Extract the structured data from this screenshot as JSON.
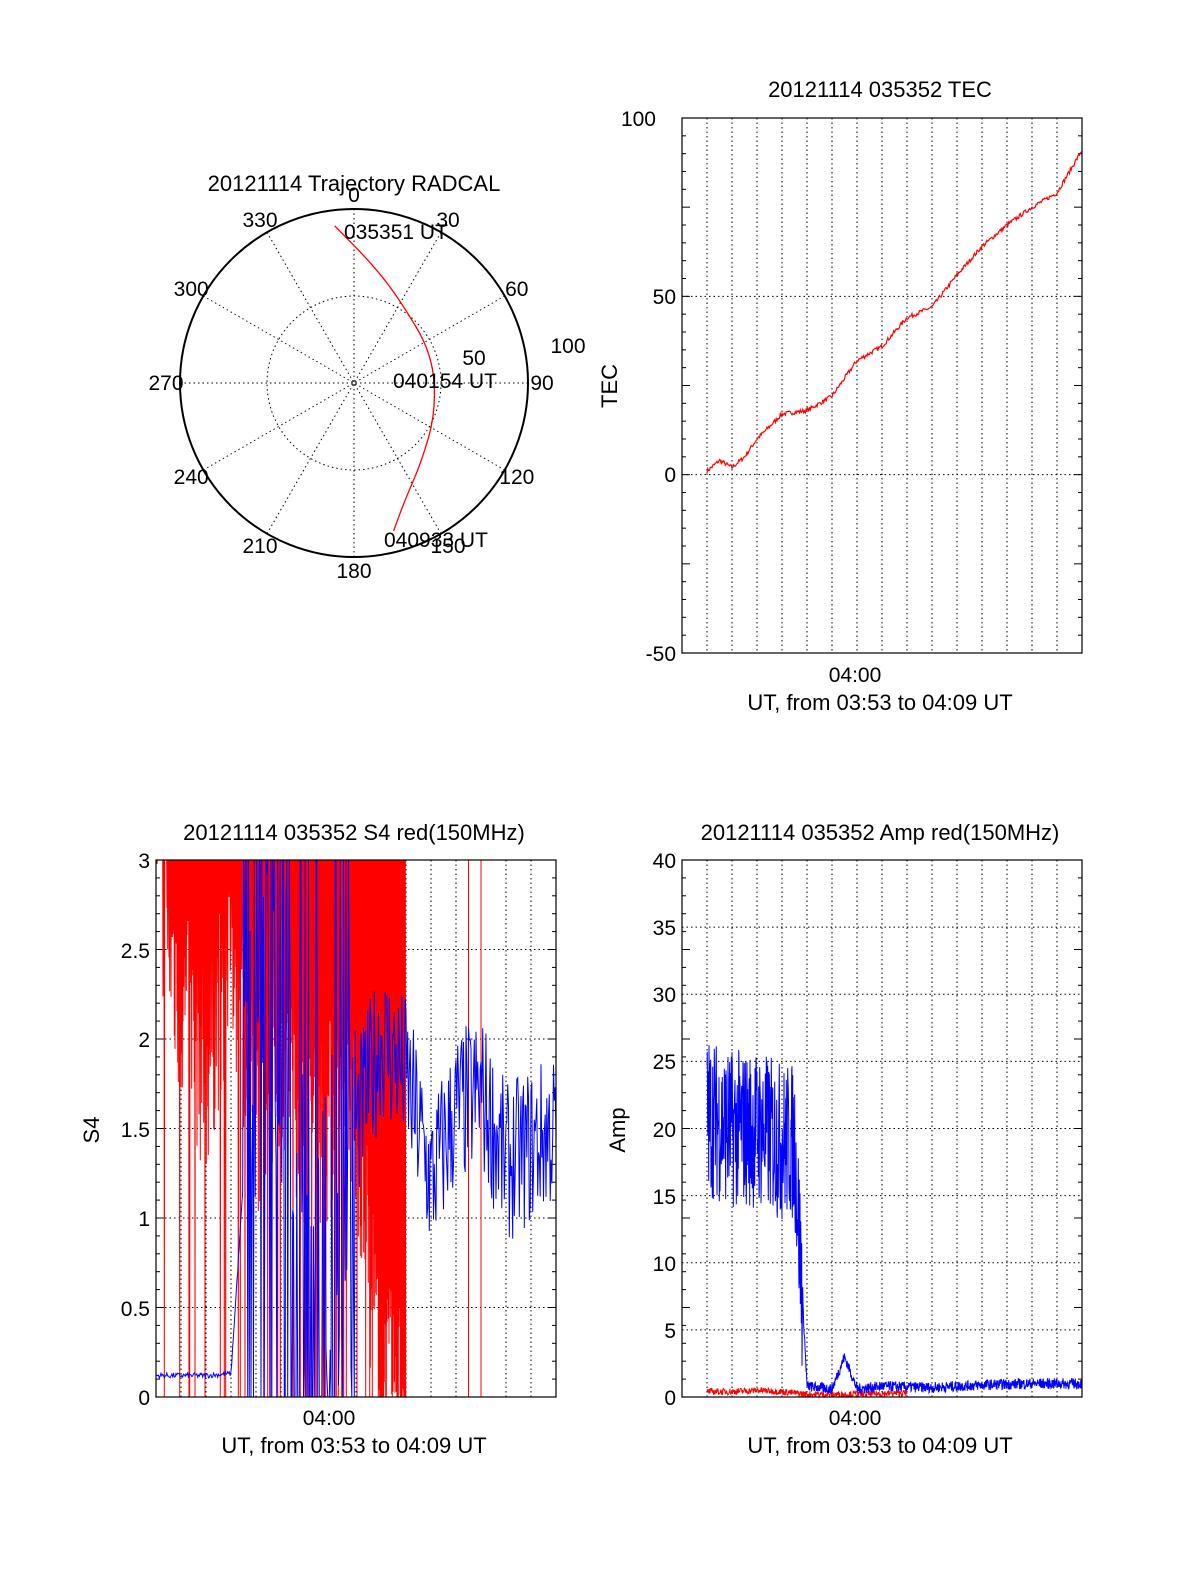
{
  "chart_data": [
    {
      "type": "polar",
      "title": "20121114 Trajectory RADCAL",
      "azimuth_labels": [
        "0",
        "30",
        "60",
        "90",
        "120",
        "150",
        "180",
        "210",
        "240",
        "270",
        "300",
        "330"
      ],
      "radial_labels": [
        "50",
        "100"
      ],
      "radial_range": [
        0,
        100
      ],
      "grid": true,
      "trajectory": {
        "color": "#ff0000",
        "points": [
          {
            "az": 353,
            "el": 9
          },
          {
            "az": 10,
            "el": 32
          },
          {
            "az": 30,
            "el": 46
          },
          {
            "az": 70,
            "el": 52
          },
          {
            "az": 110,
            "el": 50
          },
          {
            "az": 140,
            "el": 40
          },
          {
            "az": 157,
            "el": 26
          },
          {
            "az": 165,
            "el": 12
          }
        ]
      },
      "annotations": [
        "035351 UT",
        "040154 UT",
        "040933 UT"
      ]
    },
    {
      "type": "line",
      "title": "20121114 035352 TEC",
      "xlabel": "UT, from 03:53 to 04:09 UT",
      "ylabel": "TEC",
      "xlim": [
        "03:53",
        "04:09"
      ],
      "ylim": [
        -50,
        100
      ],
      "x_tick_labels": [
        "04:00"
      ],
      "y_tick_labels": [
        "-50",
        "0",
        "50",
        "100"
      ],
      "grid": true,
      "series": [
        {
          "color": "#ff0000",
          "x": [
            "03:54:00",
            "03:54:30",
            "03:55:00",
            "03:55:30",
            "03:56:00",
            "03:57:00",
            "03:58:00",
            "03:59:00",
            "04:00:00",
            "04:01:00",
            "04:02:00",
            "04:03:00",
            "04:04:00",
            "04:05:00",
            "04:06:00",
            "04:07:00",
            "04:08:00",
            "04:09:00"
          ],
          "y": [
            1,
            4,
            2,
            5,
            10,
            17,
            18,
            22,
            32,
            36,
            44,
            47,
            56,
            64,
            70,
            75,
            79,
            91
          ]
        }
      ]
    },
    {
      "type": "line",
      "title": "20121114 035352 S4 red(150MHz)",
      "xlabel": "UT, from 03:53 to 04:09 UT",
      "ylabel": "S4",
      "xlim": [
        "03:53",
        "04:09"
      ],
      "ylim": [
        0,
        3
      ],
      "x_tick_labels": [
        "04:00"
      ],
      "y_tick_labels": [
        "0",
        "0.5",
        "1",
        "1.5",
        "2",
        "2.5",
        "3"
      ],
      "grid": true,
      "series": [
        {
          "color": "#ff0000",
          "note_values": "dense spikes saturating at 3 until ~04:03, isolated spikes afterwards",
          "x": [
            "03:53:00",
            "03:54:00",
            "03:55:00",
            "03:56:00",
            "03:57:00",
            "03:58:00",
            "03:59:00",
            "04:01:00",
            "04:02:00",
            "04:03:00",
            "04:06:00"
          ],
          "y": [
            3,
            2.2,
            1.8,
            2.6,
            1.6,
            2.0,
            1.5,
            1.6,
            0,
            0.05,
            0
          ]
        },
        {
          "color": "#0000ff",
          "x": [
            "03:53:00",
            "03:54:00",
            "03:55:00",
            "03:56:00",
            "03:57:00",
            "03:58:00",
            "03:59:00",
            "04:01:00",
            "04:02:00",
            "04:03:00",
            "04:04:00",
            "04:05:00",
            "04:06:00",
            "04:07:00",
            "04:08:00",
            "04:09:00"
          ],
          "y": [
            0.12,
            0.12,
            0.12,
            0.13,
            2.3,
            2.0,
            0.4,
            1.5,
            2.0,
            1.8,
            1.2,
            1.6,
            1.7,
            1.3,
            1.4,
            1.5
          ]
        }
      ]
    },
    {
      "type": "line",
      "title": "20121114 035352 Amp red(150MHz)",
      "xlabel": "UT, from 03:53 to 04:09 UT",
      "ylabel": "Amp",
      "xlim": [
        "03:53",
        "04:09"
      ],
      "ylim": [
        0,
        40
      ],
      "x_tick_labels": [
        "04:00"
      ],
      "y_tick_labels": [
        "0",
        "5",
        "10",
        "15",
        "20",
        "25",
        "30",
        "35",
        "40"
      ],
      "grid": true,
      "series": [
        {
          "color": "#0000ff",
          "x": [
            "03:54:00",
            "03:55:00",
            "03:56:00",
            "03:57:00",
            "03:57:30",
            "03:58:00",
            "03:59:00",
            "03:59:30",
            "04:00:00",
            "04:01:00",
            "04:03:00",
            "04:05:00",
            "04:07:00",
            "04:09:00"
          ],
          "y": [
            21,
            20,
            20,
            19,
            19,
            0.8,
            0.6,
            3.0,
            0.6,
            0.8,
            0.7,
            0.9,
            1.0,
            1.0
          ]
        },
        {
          "color": "#ff0000",
          "x": [
            "03:54:00",
            "03:55:00",
            "03:56:00",
            "03:57:00",
            "03:58:00",
            "04:00:00",
            "04:02:00"
          ],
          "y": [
            0.4,
            0.4,
            0.5,
            0.4,
            0.2,
            0.2,
            0.3
          ]
        }
      ]
    }
  ]
}
